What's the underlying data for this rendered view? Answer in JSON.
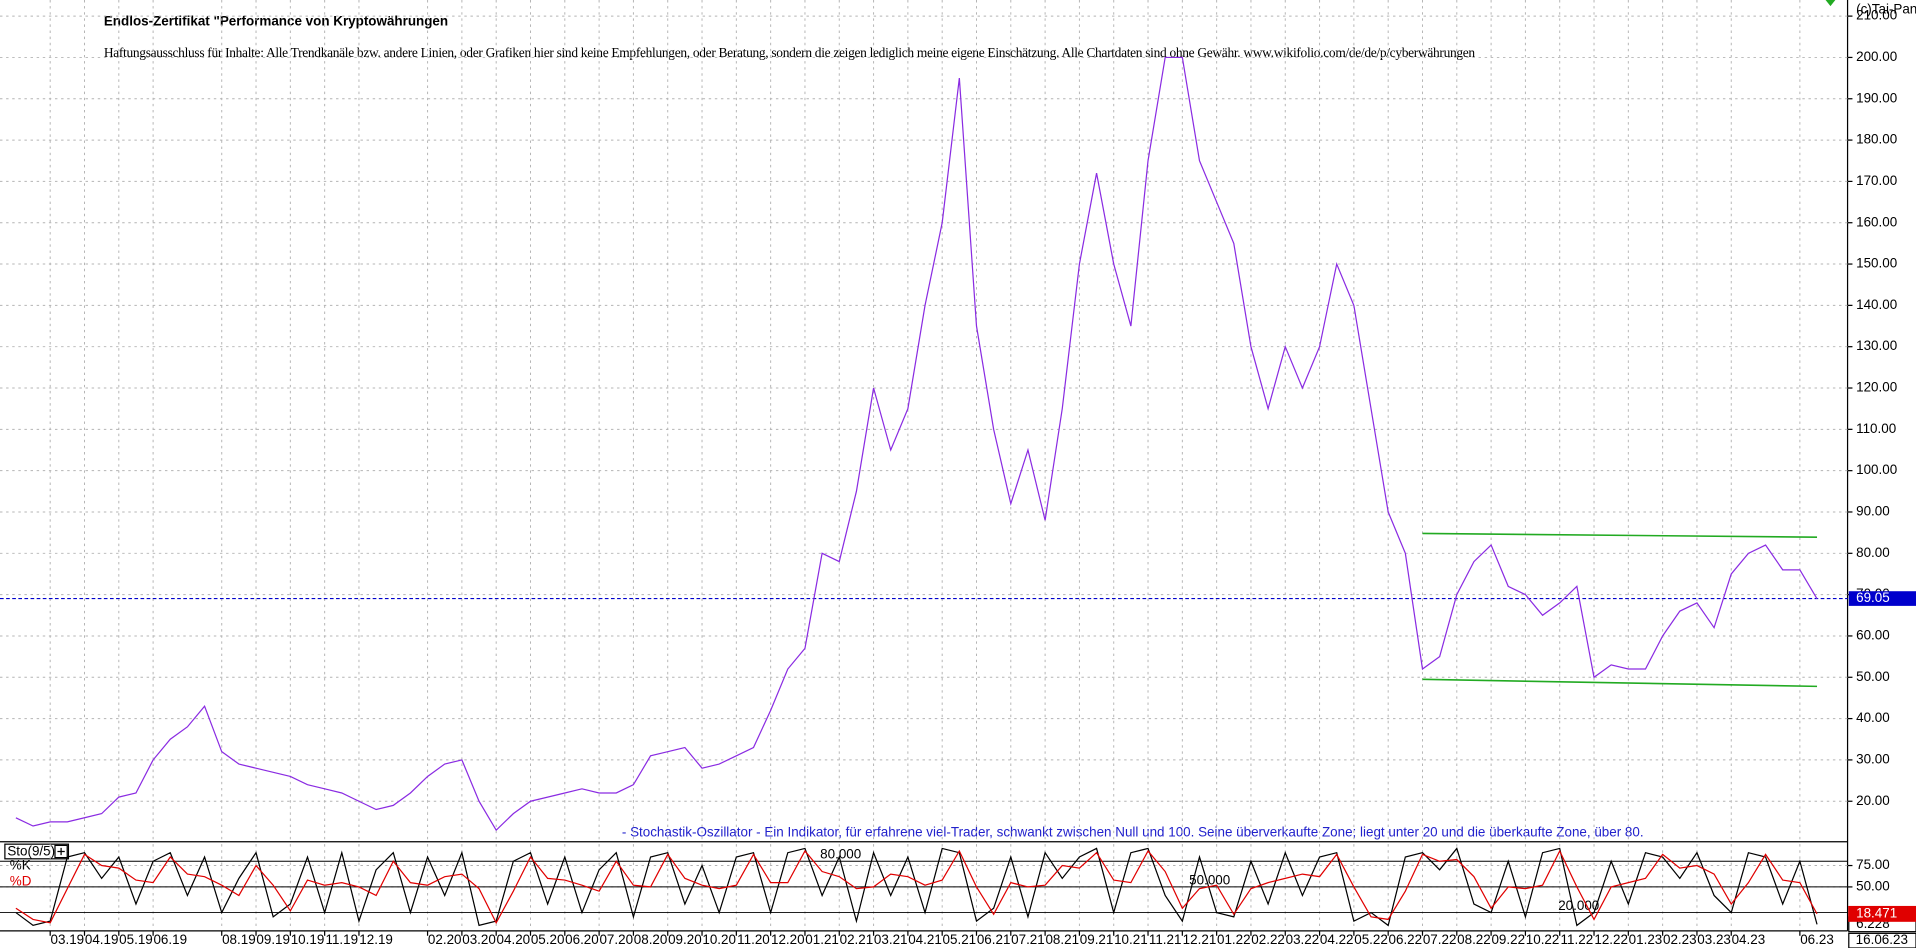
{
  "chart_data": [
    {
      "type": "line",
      "title": "Endlos-Zertifikat \"Performance von Kryptowährungen",
      "subtitle": "Haftungsausschluss für Inhalte: Alle Trendkanäle bzw. andere Linien, oder Grafiken hier sind keine Empfehlungen, oder Beratung, sondern die zeigen lediglich meine eigene Einschätzung. Alle Chartdaten sind ohne Gewähr. www.wikifolio.com/de/de/p/cyberwährungen",
      "copyright": "(c)Tai-Pan",
      "x_end_label": "16.06.23",
      "categories": [
        null,
        null,
        "03.19",
        null,
        "04.19",
        null,
        "05.19",
        null,
        "06.19",
        null,
        null,
        null,
        "08.19",
        null,
        "09.19",
        null,
        "10.19",
        null,
        "11.19",
        null,
        "12.19",
        null,
        null,
        null,
        "02.20",
        null,
        "03.20",
        null,
        "04.20",
        null,
        "05.20",
        null,
        "06.20",
        null,
        "07.20",
        null,
        "08.20",
        null,
        "09.20",
        null,
        "10.20",
        null,
        "11.20",
        null,
        "12.20",
        null,
        "01.21",
        null,
        "02.21",
        null,
        "03.21",
        null,
        "04.21",
        null,
        "05.21",
        null,
        "06.21",
        null,
        "07.21",
        null,
        "08.21",
        null,
        "09.21",
        null,
        "10.21",
        null,
        "11.21",
        null,
        "12.21",
        null,
        "01.22",
        null,
        "02.22",
        null,
        "03.22",
        null,
        "04.22",
        null,
        "05.22",
        null,
        "06.22",
        null,
        "07.22",
        null,
        "08.22",
        null,
        "09.22",
        null,
        "10.22",
        null,
        "11.22",
        null,
        "12.22",
        null,
        "01.23",
        null,
        "02.23",
        null,
        "03.23",
        null,
        "04.23",
        null,
        null,
        null,
        "06.23",
        null
      ],
      "values": [
        16,
        14,
        15,
        15,
        16,
        17,
        21,
        22,
        30,
        35,
        38,
        43,
        32,
        29,
        28,
        27,
        26,
        24,
        23,
        22,
        20,
        18,
        19,
        22,
        26,
        29,
        30,
        20,
        13,
        17,
        20,
        21,
        22,
        23,
        22,
        22,
        24,
        31,
        32,
        33,
        28,
        29,
        31,
        33,
        42,
        52,
        57,
        80,
        78,
        95,
        120,
        105,
        115,
        140,
        160,
        195,
        135,
        110,
        92,
        105,
        88,
        115,
        150,
        172,
        150,
        135,
        175,
        200,
        200,
        175,
        165,
        155,
        130,
        115,
        130,
        120,
        130,
        150,
        140,
        115,
        90,
        80,
        52,
        55,
        70,
        78,
        82,
        72,
        70,
        65,
        68,
        72,
        50,
        53,
        52,
        52,
        60,
        66,
        68,
        62,
        75,
        80,
        82,
        76,
        76,
        69
      ],
      "color": "#8a2be2",
      "ylim": [
        10.5,
        213.9
      ],
      "yticks": [
        {
          "value": 20,
          "label": "20.00"
        },
        {
          "value": 30,
          "label": "30.00"
        },
        {
          "value": 40,
          "label": "40.00"
        },
        {
          "value": 50,
          "label": "50.00"
        },
        {
          "value": 60,
          "label": "60.00"
        },
        {
          "value": 70,
          "label": "70.00"
        },
        {
          "value": 80,
          "label": "80.00"
        },
        {
          "value": 90,
          "label": "90.00"
        },
        {
          "value": 100,
          "label": "100.00"
        },
        {
          "value": 110,
          "label": "110.00"
        },
        {
          "value": 120,
          "label": "120.00"
        },
        {
          "value": 130,
          "label": "130.00"
        },
        {
          "value": 140,
          "label": "140.00"
        },
        {
          "value": 150,
          "label": "150.00"
        },
        {
          "value": 160,
          "label": "160.00"
        },
        {
          "value": 170,
          "label": "170.00"
        },
        {
          "value": 180,
          "label": "180.00"
        },
        {
          "value": 190,
          "label": "190.00"
        },
        {
          "value": 200,
          "label": "200.00"
        },
        {
          "value": 210,
          "label": "210.00"
        }
      ],
      "grid": true,
      "last_value": {
        "value": 69.05,
        "label": "69.05",
        "color": "#0000cc"
      },
      "trendlines": [
        {
          "color": "#22aa22",
          "x": [
            82,
            105
          ],
          "values": [
            84.8,
            83.9
          ]
        },
        {
          "color": "#22aa22",
          "x": [
            82,
            105
          ],
          "values": [
            49.5,
            47.8
          ]
        }
      ]
    },
    {
      "type": "line",
      "title": "Sto(9/5)",
      "annotation": "- Stochastik-Oszillator - Ein Indikator, für erfahrene viel-Trader, schwankt zwischen Null und 100. Seine überverkaufte Zone; liegt unter 20 und die überkaufte Zone, über 80.",
      "series": [
        {
          "name": "%K",
          "color": "#000000",
          "last_label": "6.228",
          "values": [
            20,
            5,
            10,
            85,
            90,
            60,
            85,
            30,
            80,
            90,
            40,
            85,
            20,
            60,
            90,
            15,
            30,
            85,
            20,
            90,
            10,
            70,
            90,
            20,
            85,
            40,
            90,
            5,
            10,
            80,
            90,
            30,
            85,
            20,
            70,
            90,
            15,
            85,
            90,
            30,
            75,
            20,
            85,
            90,
            20,
            90,
            95,
            40,
            85,
            10,
            90,
            40,
            85,
            20,
            95,
            90,
            10,
            25,
            85,
            15,
            90,
            60,
            85,
            95,
            20,
            90,
            95,
            40,
            10,
            85,
            20,
            15,
            80,
            30,
            90,
            40,
            85,
            90,
            10,
            20,
            5,
            85,
            90,
            70,
            95,
            30,
            20,
            80,
            15,
            90,
            95,
            5,
            20,
            80,
            30,
            90,
            85,
            60,
            90,
            40,
            20,
            90,
            85,
            30,
            80,
            6.228
          ]
        },
        {
          "name": "%D",
          "color": "#e00000",
          "last_label": "18.471",
          "values": [
            25,
            12,
            8,
            48,
            88,
            75,
            72,
            58,
            55,
            85,
            65,
            62,
            52,
            40,
            75,
            52,
            22,
            58,
            52,
            55,
            50,
            40,
            80,
            55,
            52,
            62,
            65,
            48,
            8,
            45,
            85,
            60,
            58,
            52,
            45,
            80,
            52,
            50,
            88,
            60,
            52,
            48,
            52,
            88,
            55,
            55,
            92,
            68,
            62,
            48,
            50,
            65,
            62,
            52,
            58,
            92,
            50,
            18,
            55,
            50,
            52,
            75,
            72,
            90,
            58,
            55,
            92,
            68,
            25,
            48,
            52,
            18,
            48,
            55,
            60,
            65,
            62,
            88,
            50,
            15,
            12,
            45,
            88,
            80,
            82,
            62,
            25,
            50,
            48,
            52,
            92,
            50,
            12,
            50,
            55,
            60,
            88,
            72,
            75,
            65,
            30,
            55,
            88,
            58,
            55,
            18.471
          ]
        }
      ],
      "ylim": [
        0,
        100
      ],
      "yticks": [
        {
          "value": 75,
          "label": "75.00"
        },
        {
          "value": 50,
          "label": "50.00"
        }
      ],
      "levels": [
        {
          "value": 80,
          "label": "80.000"
        },
        {
          "value": 50,
          "label": "50.000"
        },
        {
          "value": 20,
          "label": "20.000"
        }
      ]
    }
  ]
}
